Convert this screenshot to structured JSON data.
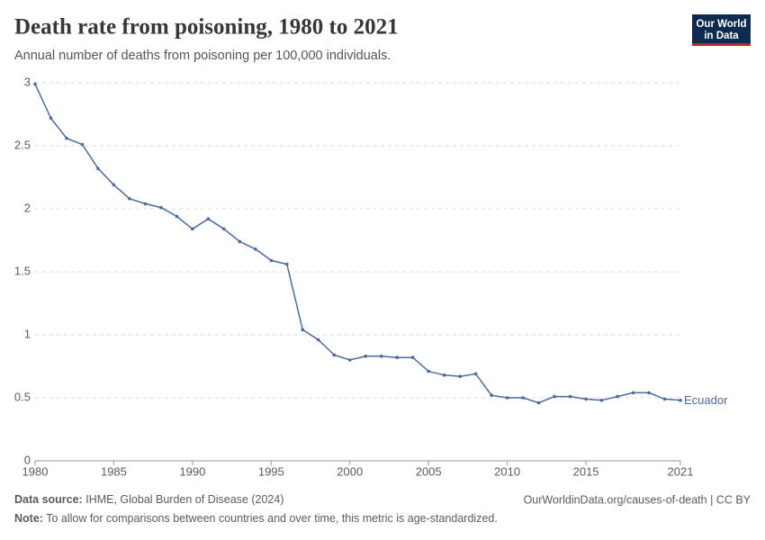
{
  "chart_data": {
    "type": "line",
    "title": "Death rate from poisoning, 1980 to 2021",
    "subtitle": "Annual number of deaths from poisoning per 100,000 individuals.",
    "logo": [
      "Our World",
      "in Data"
    ],
    "source_label": "Data source:",
    "source": "IHME, Global Burden of Disease (2024)",
    "url": "OurWorldinData.org/causes-of-death | CC BY",
    "note_label": "Note:",
    "note": "To allow for comparisons between countries and over time, this metric is age-standardized.",
    "x": [
      1980,
      1981,
      1982,
      1983,
      1984,
      1985,
      1986,
      1987,
      1988,
      1989,
      1990,
      1991,
      1992,
      1993,
      1994,
      1995,
      1996,
      1997,
      1998,
      1999,
      2000,
      2001,
      2002,
      2003,
      2004,
      2005,
      2006,
      2007,
      2008,
      2009,
      2010,
      2011,
      2012,
      2013,
      2014,
      2015,
      2016,
      2017,
      2018,
      2019,
      2020,
      2021
    ],
    "series": [
      {
        "name": "Ecuador",
        "color": "#4c6a9c",
        "values": [
          2.99,
          2.72,
          2.56,
          2.51,
          2.32,
          2.19,
          2.08,
          2.04,
          2.01,
          1.94,
          1.84,
          1.92,
          1.84,
          1.74,
          1.68,
          1.59,
          1.56,
          1.04,
          0.96,
          0.84,
          0.8,
          0.83,
          0.83,
          0.82,
          0.82,
          0.71,
          0.68,
          0.67,
          0.69,
          0.52,
          0.5,
          0.5,
          0.46,
          0.51,
          0.51,
          0.49,
          0.48,
          0.51,
          0.54,
          0.54,
          0.49,
          0.48
        ]
      }
    ],
    "xlim": [
      1980,
      2021
    ],
    "xticks": [
      1980,
      1985,
      1990,
      1995,
      2000,
      2005,
      2010,
      2015,
      2021
    ],
    "ylim": [
      0,
      3
    ],
    "yticks": [
      0,
      0.5,
      1,
      1.5,
      2,
      2.5,
      3
    ],
    "grid": true
  }
}
